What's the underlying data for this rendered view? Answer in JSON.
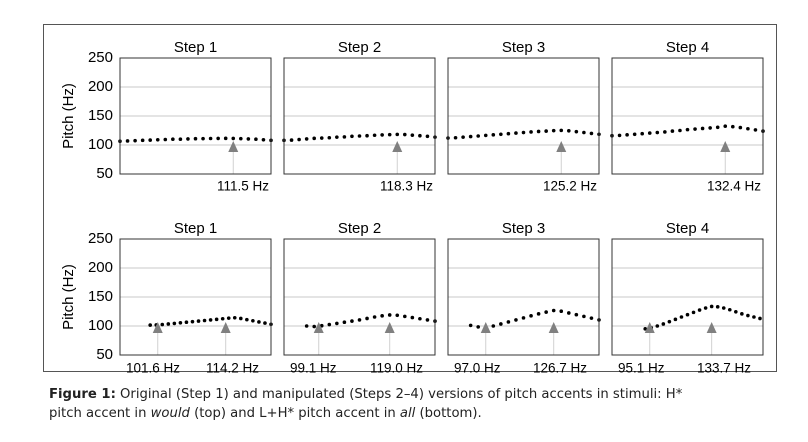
{
  "chart_data": [
    {
      "type": "line",
      "row": "top",
      "ylabel": "Pitch (Hz)",
      "ylim": [
        50,
        250
      ],
      "yticks": [
        50,
        100,
        150,
        200,
        250
      ],
      "grid": true,
      "panels": [
        {
          "title": "Step 1",
          "x": [
            0,
            0.05,
            0.1,
            0.15,
            0.2,
            0.25,
            0.3,
            0.35,
            0.4,
            0.45,
            0.5,
            0.55,
            0.6,
            0.65,
            0.7,
            0.75,
            0.8,
            0.85,
            0.9,
            0.95,
            1
          ],
          "y": [
            106.5,
            107,
            107.5,
            108,
            108.5,
            109,
            109.5,
            110,
            110,
            110.5,
            110.8,
            111,
            111.2,
            111.4,
            111.5,
            111.4,
            111,
            110.5,
            110,
            109,
            108
          ],
          "peak_x": 0.75,
          "labels": [
            "111.5 Hz"
          ]
        },
        {
          "title": "Step 2",
          "x": [
            0,
            0.05,
            0.1,
            0.15,
            0.2,
            0.25,
            0.3,
            0.35,
            0.4,
            0.45,
            0.5,
            0.55,
            0.6,
            0.65,
            0.7,
            0.75,
            0.8,
            0.85,
            0.9,
            0.95,
            1
          ],
          "y": [
            108,
            108.5,
            109.5,
            110.5,
            111.5,
            112,
            112.5,
            113.5,
            114,
            115,
            115.5,
            116,
            116.8,
            117.4,
            117.9,
            118.3,
            118,
            117,
            116,
            115,
            113.5
          ],
          "peak_x": 0.75,
          "labels": [
            "118.3 Hz"
          ]
        },
        {
          "title": "Step 3",
          "x": [
            0,
            0.05,
            0.1,
            0.15,
            0.2,
            0.25,
            0.3,
            0.35,
            0.4,
            0.45,
            0.5,
            0.55,
            0.6,
            0.65,
            0.7,
            0.75,
            0.8,
            0.85,
            0.9,
            0.95,
            1
          ],
          "y": [
            112,
            112.5,
            113.5,
            114.5,
            115.5,
            116.5,
            117.5,
            118.5,
            119.5,
            120.5,
            121.5,
            122.5,
            123.3,
            124,
            124.7,
            125.2,
            124.5,
            123,
            121.5,
            120,
            118.5
          ],
          "peak_x": 0.75,
          "labels": [
            "125.2 Hz"
          ]
        },
        {
          "title": "Step 4",
          "x": [
            0,
            0.05,
            0.1,
            0.15,
            0.2,
            0.25,
            0.3,
            0.35,
            0.4,
            0.45,
            0.5,
            0.55,
            0.6,
            0.65,
            0.7,
            0.75,
            0.8,
            0.85,
            0.9,
            0.95,
            1
          ],
          "y": [
            116,
            116.5,
            117.5,
            118.5,
            119.5,
            120.5,
            121.5,
            122.5,
            124,
            125,
            126.5,
            127.5,
            128.5,
            129.5,
            130.5,
            132.4,
            131.5,
            130,
            128,
            126,
            124
          ],
          "peak_x": 0.75,
          "labels": [
            "132.4 Hz"
          ]
        }
      ]
    },
    {
      "type": "line",
      "row": "bottom",
      "ylabel": "Pitch (Hz)",
      "ylim": [
        50,
        250
      ],
      "yticks": [
        50,
        100,
        150,
        200,
        250
      ],
      "grid": true,
      "panels": [
        {
          "title": "Step 1",
          "x": [
            0.2,
            0.24,
            0.28,
            0.32,
            0.36,
            0.4,
            0.44,
            0.48,
            0.52,
            0.56,
            0.6,
            0.64,
            0.68,
            0.72,
            0.76,
            0.8,
            0.84,
            0.88,
            0.92,
            0.96,
            1
          ],
          "y": [
            101.6,
            101.8,
            102.5,
            103.5,
            104.5,
            105.5,
            106.5,
            107.5,
            108.5,
            109.5,
            110.5,
            111.5,
            112.5,
            113.5,
            114.2,
            113,
            111,
            109,
            107,
            105,
            103
          ],
          "valley_x": 0.25,
          "peak_x": 0.7,
          "labels": [
            "101.6 Hz",
            "114.2 Hz"
          ]
        },
        {
          "title": "Step 2",
          "x": [
            0.15,
            0.2,
            0.25,
            0.3,
            0.35,
            0.4,
            0.45,
            0.5,
            0.55,
            0.6,
            0.65,
            0.7,
            0.75,
            0.8,
            0.85,
            0.9,
            0.95,
            1
          ],
          "y": [
            100,
            99.1,
            100.5,
            102.5,
            104.5,
            106.5,
            108.5,
            110.5,
            113,
            115.5,
            117.5,
            119,
            118.5,
            116.5,
            114.5,
            112.5,
            110.5,
            108.5
          ],
          "valley_x": 0.23,
          "peak_x": 0.7,
          "labels": [
            "99.1 Hz",
            "119.0 Hz"
          ]
        },
        {
          "title": "Step 3",
          "x": [
            0.15,
            0.2,
            0.25,
            0.3,
            0.35,
            0.4,
            0.45,
            0.5,
            0.55,
            0.6,
            0.65,
            0.7,
            0.75,
            0.8,
            0.85,
            0.9,
            0.95,
            1
          ],
          "y": [
            101,
            98.5,
            97,
            100,
            103.5,
            107,
            110.5,
            114,
            117.5,
            121,
            124,
            126.7,
            125.5,
            122.5,
            119.5,
            116.5,
            113.5,
            110.5
          ],
          "valley_x": 0.25,
          "peak_x": 0.7,
          "labels": [
            "97.0 Hz",
            "126.7 Hz"
          ]
        },
        {
          "title": "Step 4",
          "x": [
            0.22,
            0.26,
            0.3,
            0.34,
            0.38,
            0.42,
            0.46,
            0.5,
            0.54,
            0.58,
            0.62,
            0.66,
            0.7,
            0.74,
            0.78,
            0.82,
            0.86,
            0.9,
            0.94,
            0.98
          ],
          "y": [
            95.1,
            97,
            100,
            103.5,
            107.5,
            111.5,
            115.5,
            119.5,
            123.5,
            127.5,
            131,
            133.7,
            133,
            131,
            128,
            124.5,
            121,
            118,
            115.5,
            113
          ],
          "valley_x": 0.25,
          "peak_x": 0.66,
          "labels": [
            "95.1 Hz",
            "133.7 Hz"
          ]
        }
      ]
    }
  ],
  "caption": {
    "label": "Figure 1:",
    "line1_a": " Original (Step 1) and manipulated (Steps 2–4) versions of pitch accents in stimuli: H*",
    "line2_a": "pitch accent in ",
    "line2_would": "would",
    "line2_b": " (top) and L+H* pitch accent in ",
    "line2_all": "all",
    "line2_c": " (bottom)."
  },
  "colors": {
    "frame": "#555555",
    "plot_border": "#333333",
    "grid": "#c8c8c8",
    "dots": "#000000",
    "marker": "#808080",
    "marker_line": "#d0d0d0",
    "text": "#000000"
  }
}
